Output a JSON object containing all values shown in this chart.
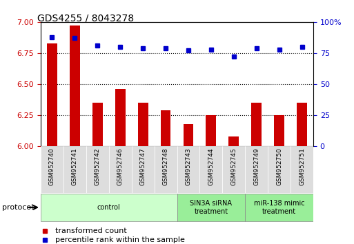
{
  "title": "GDS4255 / 8043278",
  "samples": [
    "GSM952740",
    "GSM952741",
    "GSM952742",
    "GSM952746",
    "GSM952747",
    "GSM952748",
    "GSM952743",
    "GSM952744",
    "GSM952745",
    "GSM952749",
    "GSM952750",
    "GSM952751"
  ],
  "transformed_count": [
    6.83,
    6.97,
    6.35,
    6.46,
    6.35,
    6.29,
    6.18,
    6.25,
    6.08,
    6.35,
    6.25,
    6.35
  ],
  "percentile_rank": [
    88,
    87,
    81,
    80,
    79,
    79,
    77,
    78,
    72,
    79,
    78,
    80
  ],
  "bar_color": "#cc0000",
  "dot_color": "#0000cc",
  "ylim_left": [
    6.0,
    7.0
  ],
  "ylim_right": [
    0,
    100
  ],
  "yticks_left": [
    6.0,
    6.25,
    6.5,
    6.75,
    7.0
  ],
  "yticks_right": [
    0,
    25,
    50,
    75,
    100
  ],
  "grid_lines": [
    6.25,
    6.5,
    6.75
  ],
  "protocol_groups": [
    {
      "label": "control",
      "start": 0,
      "end": 5,
      "color": "#ccffcc"
    },
    {
      "label": "SIN3A siRNA\ntreatment",
      "start": 6,
      "end": 8,
      "color": "#99ee99"
    },
    {
      "label": "miR-138 mimic\ntreatment",
      "start": 9,
      "end": 11,
      "color": "#99ee99"
    }
  ],
  "legend_items": [
    {
      "label": "transformed count",
      "color": "#cc0000"
    },
    {
      "label": "percentile rank within the sample",
      "color": "#0000cc"
    }
  ],
  "protocol_label": "protocol",
  "tick_label_color_left": "#cc0000",
  "tick_label_color_right": "#0000cc",
  "bar_width": 0.45
}
